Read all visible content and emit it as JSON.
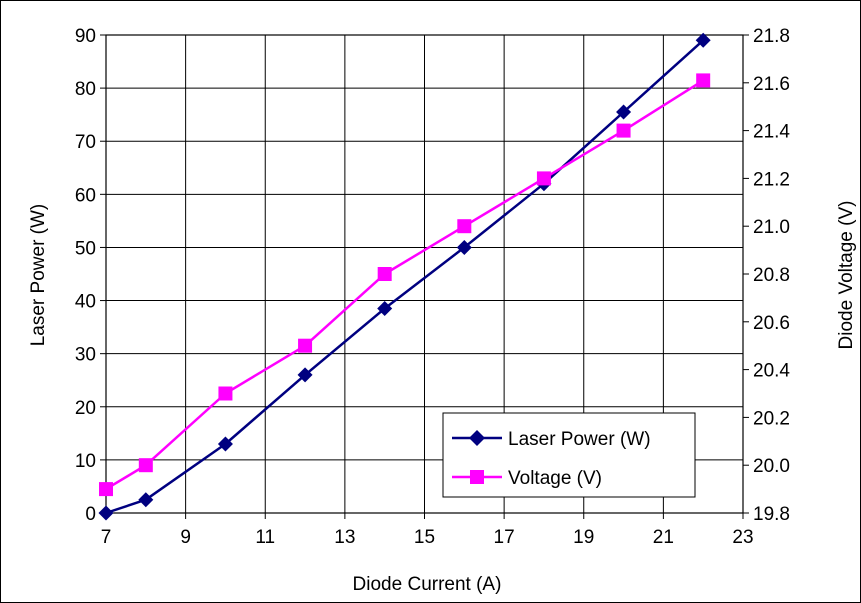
{
  "chart_data": {
    "type": "line",
    "xlabel": "Diode Current (A)",
    "ylabel_left": "Laser Power (W)",
    "ylabel_right": "Diode Voltage (V)",
    "xlim": [
      7,
      23
    ],
    "ylim_left": [
      0,
      90
    ],
    "ylim_right": [
      19.8,
      21.8
    ],
    "x_ticks": [
      "7",
      "9",
      "11",
      "13",
      "15",
      "17",
      "19",
      "21",
      "23"
    ],
    "y_left_ticks": [
      "0",
      "10",
      "20",
      "30",
      "40",
      "50",
      "60",
      "70",
      "80",
      "90"
    ],
    "y_right_ticks": [
      "19.8",
      "20.0",
      "20.2",
      "20.4",
      "20.6",
      "20.8",
      "21.0",
      "21.2",
      "21.4",
      "21.6",
      "21.8"
    ],
    "grid": true,
    "legend_position": "bottom-right",
    "series": [
      {
        "name": "Laser Power (W)",
        "axis": "left",
        "color": "#000080",
        "marker": "diamond",
        "x": [
          7,
          8,
          10,
          12,
          14,
          16,
          18,
          20,
          22
        ],
        "y": [
          0,
          2.5,
          13,
          26,
          38.5,
          50,
          62,
          75.5,
          89
        ]
      },
      {
        "name": "Voltage (V)",
        "axis": "right",
        "color": "#ff00ff",
        "marker": "square",
        "x": [
          7,
          8,
          10,
          12,
          14,
          16,
          18,
          20,
          22
        ],
        "y": [
          19.9,
          20.0,
          20.3,
          20.5,
          20.8,
          21.0,
          21.2,
          21.4,
          21.61
        ]
      }
    ]
  }
}
